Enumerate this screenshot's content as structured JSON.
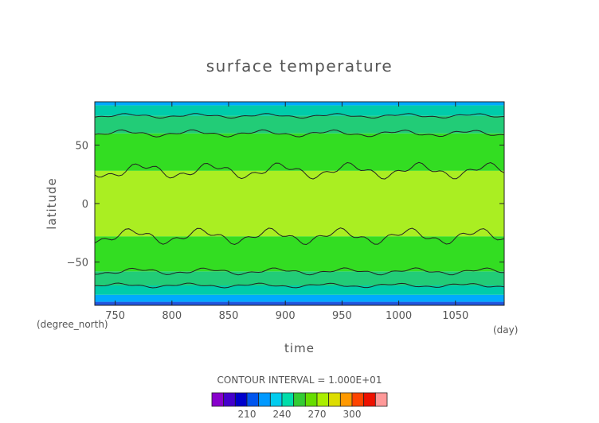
{
  "chart_data": {
    "type": "heatmap",
    "title": "surface temperature",
    "xlabel": "time",
    "ylabel": "latitude",
    "x_unit": "(day)",
    "y_unit": "(degree_north)",
    "xlim": [
      732,
      1093
    ],
    "ylim": [
      -87,
      87
    ],
    "x_ticks": [
      750,
      800,
      850,
      900,
      950,
      1000,
      1050
    ],
    "y_ticks": [
      50,
      0,
      -50
    ],
    "x_tick_labels": [
      "750",
      "800",
      "850",
      "900",
      "950",
      "1000",
      "1050"
    ],
    "y_tick_labels": [
      "50",
      "0",
      "−50"
    ],
    "contour_interval_text": "CONTOUR INTERVAL = 1.000E+01",
    "colorbar": {
      "levels": [
        190,
        200,
        210,
        220,
        230,
        240,
        250,
        260,
        270,
        280,
        290,
        300,
        310
      ],
      "colors": [
        "#8800cc",
        "#4400cc",
        "#0000cc",
        "#0055ee",
        "#0099ff",
        "#00ccee",
        "#00ddaa",
        "#33cc33",
        "#66dd00",
        "#aaee00",
        "#dddd00",
        "#ff9900",
        "#ff4400",
        "#ee1100",
        "#ff9999"
      ],
      "tick_values": [
        210,
        240,
        270,
        300
      ],
      "tick_labels": [
        "210",
        "240",
        "270",
        "300"
      ]
    },
    "bands": [
      {
        "lat_from": -90,
        "lat_to": -84,
        "color": "#2255dd"
      },
      {
        "lat_from": -84,
        "lat_to": -78,
        "color": "#00aaff"
      },
      {
        "lat_from": -78,
        "lat_to": -70,
        "color": "#00ccaa"
      },
      {
        "lat_from": -70,
        "lat_to": -58,
        "color": "#22cc77"
      },
      {
        "lat_from": -58,
        "lat_to": -28,
        "color": "#33dd22"
      },
      {
        "lat_from": -28,
        "lat_to": 28,
        "color": "#aaee22"
      },
      {
        "lat_from": 28,
        "lat_to": 60,
        "color": "#33dd22"
      },
      {
        "lat_from": 60,
        "lat_to": 75,
        "color": "#22cc77"
      },
      {
        "lat_from": 75,
        "lat_to": 84,
        "color": "#00ccaa"
      },
      {
        "lat_from": 84,
        "lat_to": 90,
        "color": "#00aaff"
      }
    ]
  }
}
